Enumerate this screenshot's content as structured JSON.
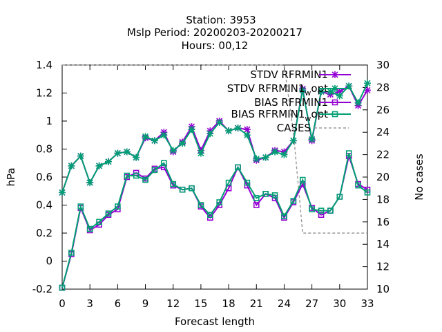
{
  "chart_data": {
    "type": "line",
    "title_lines": [
      "Station:      3953",
      "Mslp   Period: 20200203-20200217",
      "Hours:  00,12"
    ],
    "xlabel": "Forecast length",
    "ylabel": "hPa",
    "y2label": "No cases",
    "xlim": [
      0,
      33
    ],
    "ylim": [
      -0.2,
      1.4
    ],
    "y2lim": [
      10,
      30
    ],
    "xticks": [
      "0",
      "3",
      "6",
      "9",
      "12",
      "15",
      "18",
      "21",
      "24",
      "27",
      "30",
      "33"
    ],
    "yticks": [
      "-0.2",
      "0",
      "0.2",
      "0.4",
      "0.6",
      "0.8",
      "1",
      "1.2",
      "1.4"
    ],
    "y2ticks": [
      "10",
      "12",
      "14",
      "16",
      "18",
      "20",
      "22",
      "24",
      "26",
      "28",
      "30"
    ],
    "grid": false,
    "legend_position": "top-right",
    "colors": {
      "purple": "#9400d3",
      "green": "#009e73",
      "cases": "#999999"
    },
    "series": [
      {
        "name": "STDV RFRMIN1",
        "marker": "star",
        "color": "#9400d3",
        "x": [
          0,
          1,
          2,
          3,
          4,
          5,
          6,
          7,
          8,
          9,
          10,
          11,
          12,
          13,
          14,
          15,
          16,
          17,
          18,
          19,
          20,
          21,
          22,
          23,
          24,
          25,
          26,
          27,
          28,
          29,
          30,
          31,
          32,
          33
        ],
        "values": [
          0.49,
          0.68,
          0.75,
          0.56,
          0.68,
          0.71,
          0.77,
          0.78,
          0.74,
          0.88,
          0.86,
          0.92,
          0.78,
          0.85,
          0.96,
          0.79,
          0.93,
          1.0,
          0.93,
          0.95,
          0.94,
          0.72,
          0.74,
          0.79,
          0.78,
          0.86,
          1.23,
          0.86,
          1.21,
          1.19,
          1.21,
          1.25,
          1.11,
          1.22
        ]
      },
      {
        "name": "STDV RFRMIN1_w_opt",
        "label_main": "STDV RFRMIN1",
        "label_sub": "w",
        "label_end": "opt",
        "marker": "star",
        "color": "#009e73",
        "x": [
          0,
          1,
          2,
          3,
          4,
          5,
          6,
          7,
          8,
          9,
          10,
          11,
          12,
          13,
          14,
          15,
          16,
          17,
          18,
          19,
          20,
          21,
          22,
          23,
          24,
          25,
          26,
          27,
          28,
          29,
          30,
          31,
          32,
          33
        ],
        "values": [
          0.49,
          0.68,
          0.75,
          0.56,
          0.68,
          0.71,
          0.77,
          0.78,
          0.74,
          0.89,
          0.86,
          0.9,
          0.79,
          0.84,
          0.94,
          0.77,
          0.91,
          0.99,
          0.93,
          0.95,
          0.9,
          0.73,
          0.74,
          0.78,
          0.76,
          0.86,
          1.22,
          0.87,
          1.21,
          1.21,
          1.18,
          1.25,
          1.13,
          1.27
        ]
      },
      {
        "name": "BIAS RFRMIN1",
        "marker": "square",
        "color": "#9400d3",
        "x": [
          0,
          1,
          2,
          3,
          4,
          5,
          6,
          7,
          8,
          9,
          10,
          11,
          12,
          13,
          14,
          15,
          16,
          17,
          18,
          19,
          20,
          21,
          22,
          23,
          24,
          25,
          26,
          27,
          28,
          29,
          30,
          31,
          32,
          33
        ],
        "values": [
          -0.19,
          0.05,
          0.38,
          0.22,
          0.26,
          0.33,
          0.37,
          0.6,
          0.63,
          0.59,
          0.66,
          0.67,
          0.54,
          0.51,
          0.52,
          0.39,
          0.31,
          0.4,
          0.52,
          0.67,
          0.54,
          0.4,
          0.48,
          0.45,
          0.31,
          0.42,
          0.55,
          0.38,
          0.33,
          0.36,
          0.46,
          0.75,
          0.55,
          0.51
        ]
      },
      {
        "name": "BIAS RFRMIN1_w_opt",
        "label_main": "BIAS RFRMIN1",
        "label_sub": "w",
        "label_end": "opt",
        "marker": "square",
        "color": "#009e73",
        "x": [
          0,
          1,
          2,
          3,
          4,
          5,
          6,
          7,
          8,
          9,
          10,
          11,
          12,
          13,
          14,
          15,
          16,
          17,
          18,
          19,
          20,
          21,
          22,
          23,
          24,
          25,
          26,
          27,
          28,
          29,
          30,
          31,
          32,
          33
        ],
        "values": [
          -0.19,
          0.06,
          0.39,
          0.23,
          0.28,
          0.34,
          0.39,
          0.61,
          0.61,
          0.58,
          0.65,
          0.7,
          0.55,
          0.51,
          0.52,
          0.4,
          0.33,
          0.42,
          0.56,
          0.67,
          0.56,
          0.45,
          0.48,
          0.47,
          0.32,
          0.43,
          0.58,
          0.37,
          0.36,
          0.36,
          0.46,
          0.77,
          0.54,
          0.49
        ]
      },
      {
        "name": "CASES",
        "axis": "y2",
        "style": "dashed",
        "color": "#999999",
        "x": [
          0,
          24,
          25,
          26,
          33
        ],
        "values": [
          30,
          30,
          24,
          15,
          15
        ]
      }
    ]
  }
}
